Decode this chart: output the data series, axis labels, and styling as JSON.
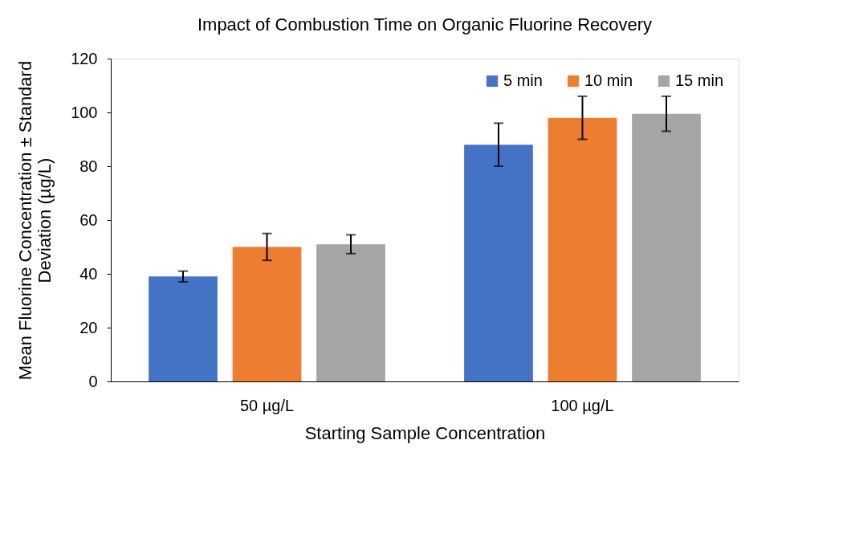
{
  "chart_data": {
    "type": "bar",
    "title": "Impact of Combustion Time on Organic Fluorine Recovery",
    "xlabel": "Starting Sample Concentration",
    "ylabel": "Mean Fluorine Concentration ± Standard Deviation (µg/L)",
    "categories": [
      "50 µg/L",
      "100 µg/L"
    ],
    "series": [
      {
        "name": "5 min",
        "color": "#4472c4",
        "values": [
          39,
          88
        ],
        "errors": [
          2,
          8
        ]
      },
      {
        "name": "10 min",
        "color": "#ed7d31",
        "values": [
          50,
          98
        ],
        "errors": [
          5,
          8
        ]
      },
      {
        "name": "15 min",
        "color": "#a5a5a5",
        "values": [
          51,
          99.5
        ],
        "errors": [
          3.5,
          6.5
        ]
      }
    ],
    "ylim": [
      0,
      120
    ],
    "yticks": [
      0,
      20,
      40,
      60,
      80,
      100,
      120
    ],
    "grid": false,
    "legend": "top right"
  }
}
